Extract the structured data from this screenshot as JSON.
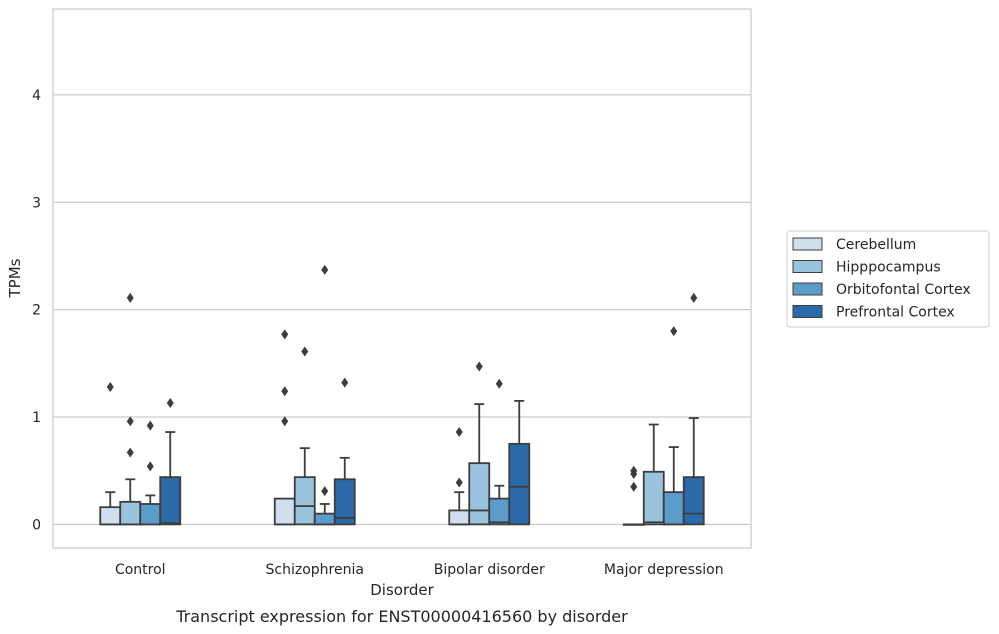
{
  "chart_data": {
    "type": "box",
    "title": "",
    "caption": "Transcript expression for ENST00000416560 by disorder",
    "xlabel": "Disorder",
    "ylabel": "TPMs",
    "ylim": [
      -0.22,
      4.8
    ],
    "yticks": [
      "0",
      "1",
      "2",
      "3",
      "4"
    ],
    "ytick_values": [
      0,
      1,
      2,
      3,
      4
    ],
    "grid": "horizontal",
    "legend_position": "right",
    "categories": [
      "Control",
      "Schizophrenia",
      "Bipolar disorder",
      "Major depression"
    ],
    "series": [
      {
        "name": "Cerebellum",
        "color": "#d0dfee",
        "boxes": [
          {
            "q1": 0.0,
            "median": 0.0,
            "q3": 0.16,
            "whisker_low": 0.0,
            "whisker_high": 0.3,
            "outliers": [
              1.28
            ]
          },
          {
            "q1": 0.0,
            "median": 0.0,
            "q3": 0.24,
            "whisker_low": 0.0,
            "whisker_high": 0.24,
            "outliers": [
              0.96,
              1.24,
              1.77
            ]
          },
          {
            "q1": 0.0,
            "median": 0.0,
            "q3": 0.13,
            "whisker_low": 0.0,
            "whisker_high": 0.3,
            "outliers": [
              0.39,
              0.86
            ]
          },
          {
            "q1": 0.0,
            "median": 0.0,
            "q3": 0.0,
            "whisker_low": 0.0,
            "whisker_high": 0.0,
            "outliers": [
              0.35,
              0.47,
              0.5
            ]
          }
        ]
      },
      {
        "name": "Hipppocampus",
        "color": "#9ac3dd",
        "boxes": [
          {
            "q1": 0.0,
            "median": 0.0,
            "q3": 0.21,
            "whisker_low": 0.0,
            "whisker_high": 0.42,
            "outliers": [
              0.67,
              0.96,
              2.11
            ]
          },
          {
            "q1": 0.0,
            "median": 0.17,
            "q3": 0.44,
            "whisker_low": 0.0,
            "whisker_high": 0.71,
            "outliers": [
              1.61
            ]
          },
          {
            "q1": 0.0,
            "median": 0.13,
            "q3": 0.57,
            "whisker_low": 0.0,
            "whisker_high": 1.12,
            "outliers": [
              1.47
            ]
          },
          {
            "q1": 0.0,
            "median": 0.02,
            "q3": 0.49,
            "whisker_low": 0.0,
            "whisker_high": 0.93,
            "outliers": []
          }
        ]
      },
      {
        "name": "Orbitofontal Cortex",
        "color": "#5b9cca",
        "boxes": [
          {
            "q1": 0.0,
            "median": 0.0,
            "q3": 0.19,
            "whisker_low": 0.0,
            "whisker_high": 0.27,
            "outliers": [
              0.54,
              0.92
            ]
          },
          {
            "q1": 0.0,
            "median": 0.0,
            "q3": 0.1,
            "whisker_low": 0.0,
            "whisker_high": 0.19,
            "outliers": [
              0.31,
              2.37
            ]
          },
          {
            "q1": 0.0,
            "median": 0.02,
            "q3": 0.24,
            "whisker_low": 0.0,
            "whisker_high": 0.36,
            "outliers": [
              1.31
            ]
          },
          {
            "q1": 0.0,
            "median": 0.0,
            "q3": 0.3,
            "whisker_low": 0.0,
            "whisker_high": 0.72,
            "outliers": [
              1.8
            ]
          }
        ]
      },
      {
        "name": "Prefrontal Cortex",
        "color": "#2b6aa9",
        "boxes": [
          {
            "q1": 0.0,
            "median": 0.01,
            "q3": 0.44,
            "whisker_low": 0.0,
            "whisker_high": 0.86,
            "outliers": [
              1.13
            ]
          },
          {
            "q1": 0.0,
            "median": 0.06,
            "q3": 0.42,
            "whisker_low": 0.0,
            "whisker_high": 0.62,
            "outliers": [
              1.32
            ]
          },
          {
            "q1": 0.0,
            "median": 0.35,
            "q3": 0.75,
            "whisker_low": 0.0,
            "whisker_high": 1.15,
            "outliers": []
          },
          {
            "q1": 0.0,
            "median": 0.1,
            "q3": 0.44,
            "whisker_low": 0.0,
            "whisker_high": 0.99,
            "outliers": [
              2.11
            ]
          }
        ]
      }
    ]
  }
}
